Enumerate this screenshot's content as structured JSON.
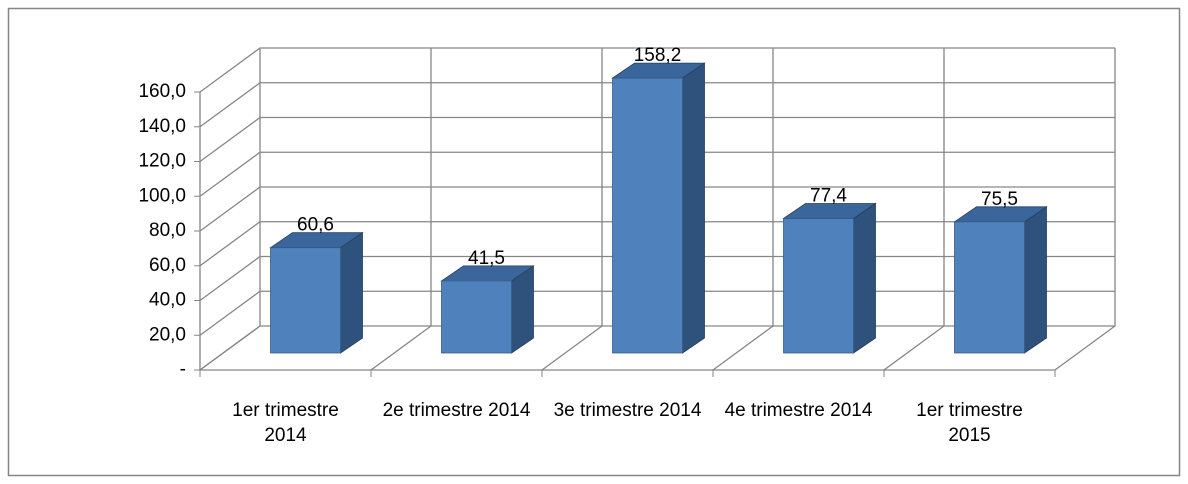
{
  "chart_data": {
    "type": "bar3d",
    "categories": [
      "1er trimestre 2014",
      "2e trimestre 2014",
      "3e trimestre 2014",
      "4e trimestre 2014",
      "1er trimestre 2015"
    ],
    "values": [
      60.6,
      41.5,
      158.2,
      77.4,
      75.5
    ],
    "value_labels": [
      "60,6",
      "41,5",
      "158,2",
      "77,4",
      "75,5"
    ],
    "color": "#4f81bd",
    "ylim": [
      0,
      160
    ],
    "yticks": [
      {
        "value": 0,
        "label": "-"
      },
      {
        "value": 20,
        "label": "20,0"
      },
      {
        "value": 40,
        "label": "40,0"
      },
      {
        "value": 60,
        "label": "60,0"
      },
      {
        "value": 80,
        "label": "80,0"
      },
      {
        "value": 100,
        "label": "100,0"
      },
      {
        "value": 120,
        "label": "120,0"
      },
      {
        "value": 140,
        "label": "140,0"
      },
      {
        "value": 160,
        "label": "160,0"
      }
    ],
    "grid": true
  }
}
